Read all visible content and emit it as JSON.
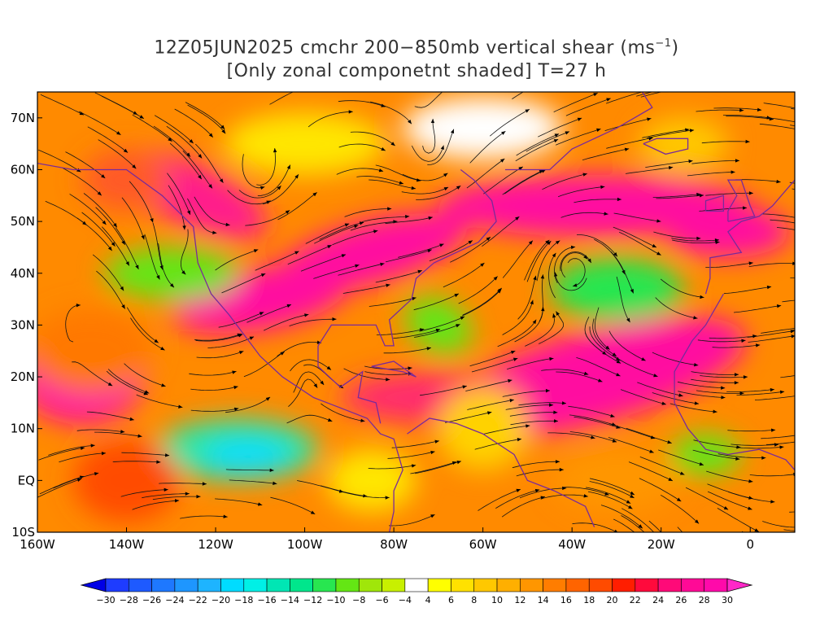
{
  "header": {
    "title_line1_main": "12Z05JUN2025 cmchr 200−850mb vertical shear (ms",
    "title_line1_sup": "−1",
    "title_line1_end": ")",
    "title_line2": "[Only zonal componetnt shaded] T=27 h"
  },
  "map": {
    "lat_labels": [
      "70N",
      "60N",
      "50N",
      "40N",
      "30N",
      "20N",
      "10N",
      "EQ",
      "10S"
    ],
    "lon_labels": [
      "160W",
      "140W",
      "120W",
      "100W",
      "80W",
      "60W",
      "40W",
      "20W",
      "0"
    ],
    "lat_range": [
      -10,
      75
    ],
    "lon_range": [
      -160,
      10
    ]
  },
  "colorbar": {
    "labels": [
      "−30",
      "−28",
      "−26",
      "−24",
      "−22",
      "−20",
      "−18",
      "−16",
      "−14",
      "−12",
      "−10",
      "−8",
      "−6",
      "−4",
      "4",
      "6",
      "8",
      "10",
      "12",
      "14",
      "16",
      "18",
      "20",
      "22",
      "24",
      "26",
      "28",
      "30"
    ],
    "colors": [
      "#1e3cff",
      "#1e5aff",
      "#1e78ff",
      "#1e96ff",
      "#1eb4ff",
      "#00dcff",
      "#00f0e6",
      "#00e6b4",
      "#00e68c",
      "#28e650",
      "#64e614",
      "#a0e60a",
      "#c8f000",
      "#ffffff",
      "#ffff00",
      "#ffe100",
      "#ffc800",
      "#ffaf00",
      "#ff9600",
      "#ff7d00",
      "#ff6400",
      "#ff4b00",
      "#ff1e00",
      "#ff0a3c",
      "#ff0a78",
      "#ff0a96",
      "#ff0aaa"
    ],
    "under_color": "#0000e6",
    "over_color": "#ff28c8"
  }
}
